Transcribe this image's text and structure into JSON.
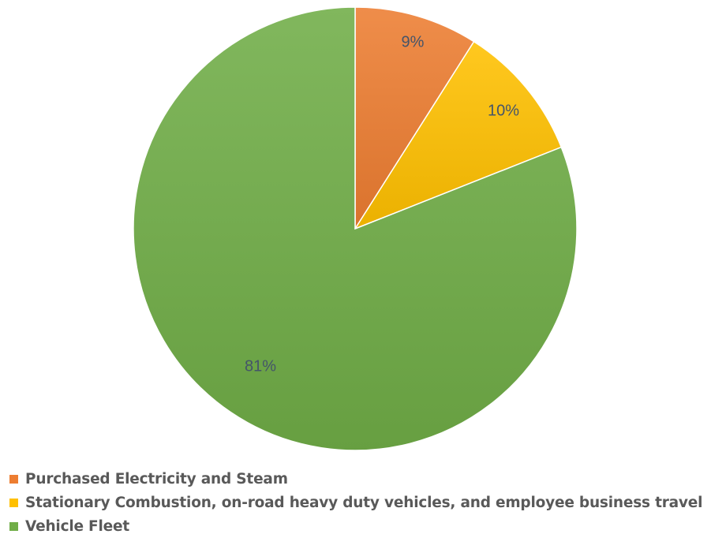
{
  "chart_data": {
    "type": "pie",
    "title": "",
    "start_angle": "12 o'clock",
    "direction": "clockwise",
    "slices": [
      {
        "label": "Purchased Electricity and Steam",
        "value": 9,
        "value_label": "9%",
        "color": "#ed7d31"
      },
      {
        "label": "Stationary Combustion, on-road heavy duty vehicles, and employee business travel",
        "value": 10,
        "value_label": "10%",
        "color": "#ffc000"
      },
      {
        "label": "Vehicle Fleet",
        "value": 81,
        "value_label": "81%",
        "color": "#70ad47"
      }
    ],
    "legend_position": "bottom-left"
  }
}
